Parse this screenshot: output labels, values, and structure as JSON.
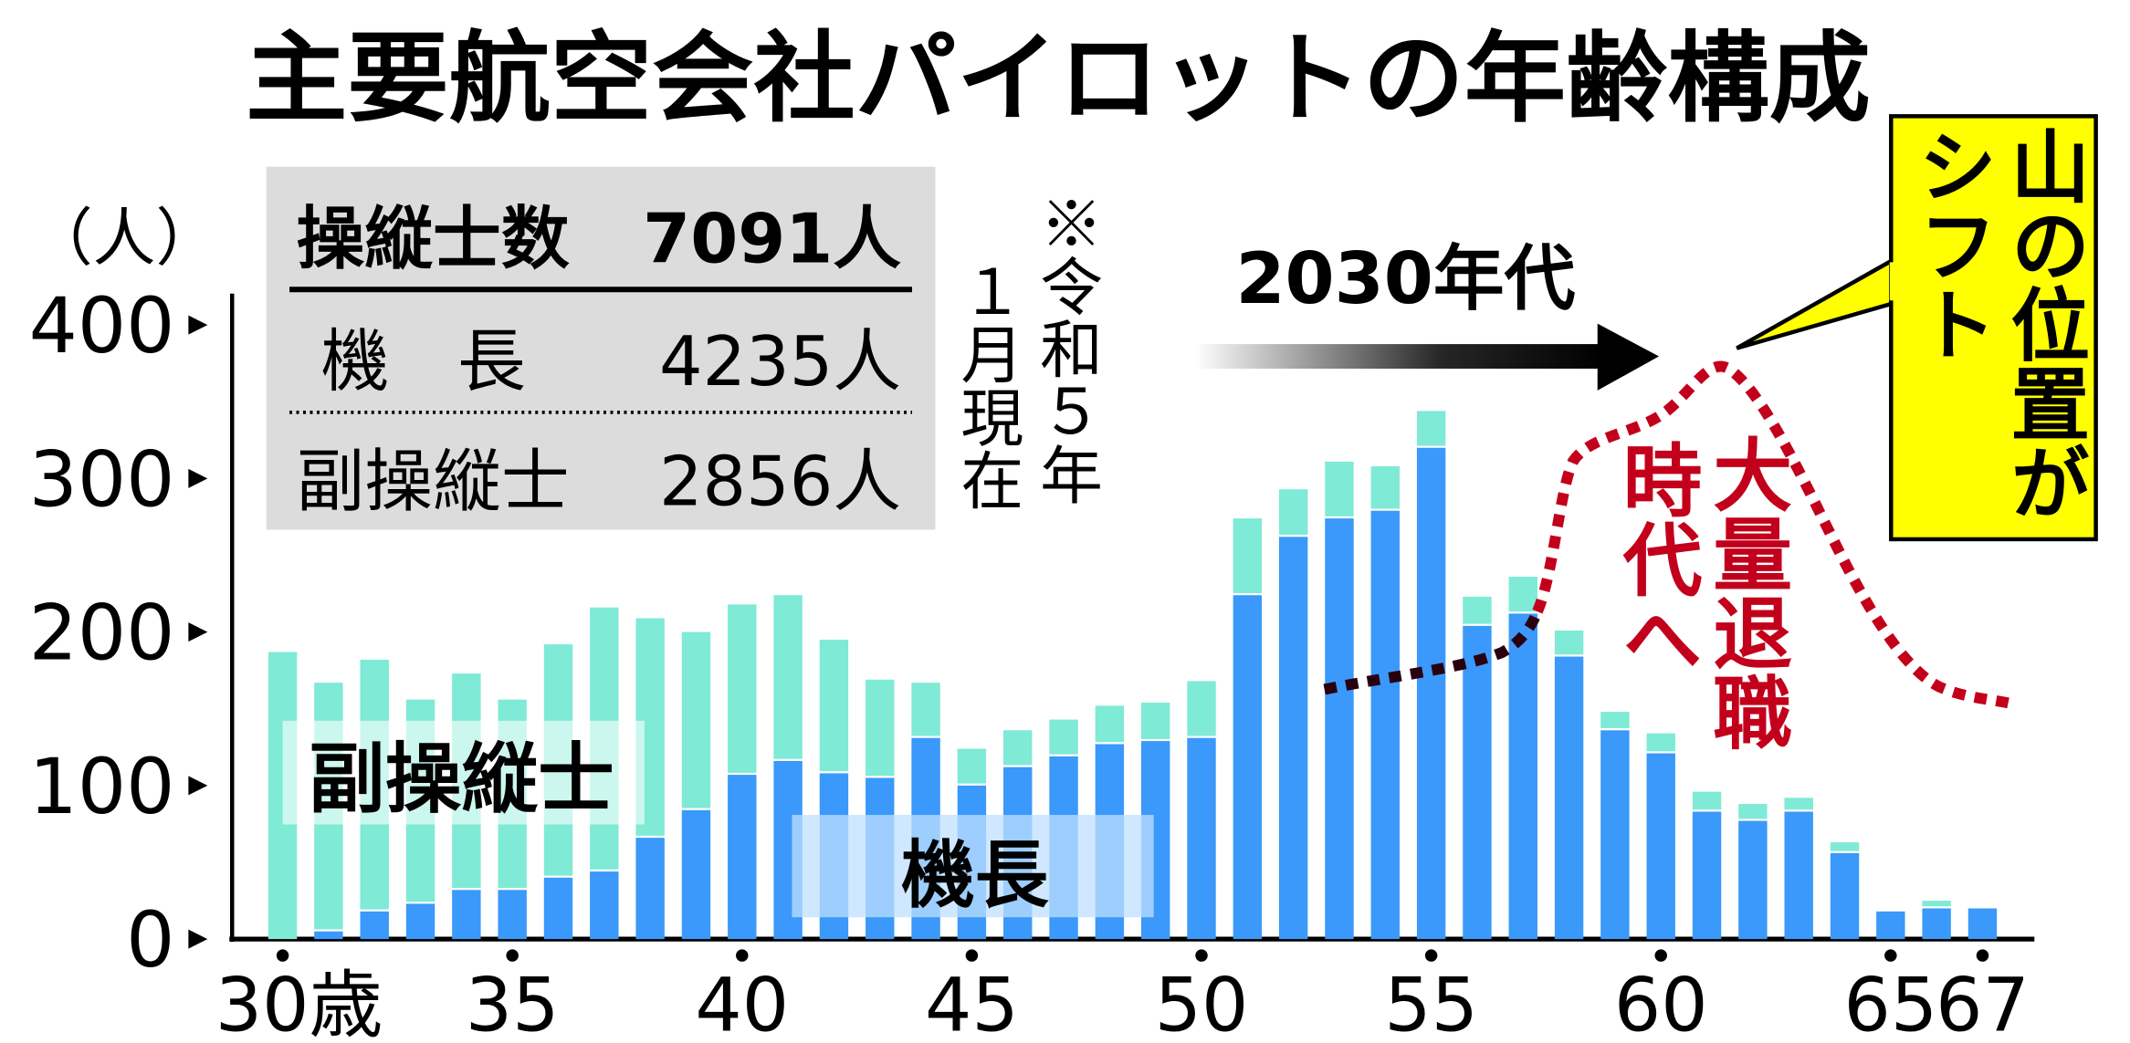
{
  "chart_data": {
    "type": "bar",
    "stacked": true,
    "title": "主要航空会社パイロットの年齢構成",
    "ylabel": "（人）",
    "ylim": [
      0,
      400
    ],
    "yticks": [
      "0",
      "100",
      "200",
      "300",
      "400"
    ],
    "x": [
      30,
      31,
      32,
      33,
      34,
      35,
      36,
      37,
      38,
      39,
      40,
      41,
      42,
      43,
      44,
      45,
      46,
      47,
      48,
      49,
      50,
      51,
      52,
      53,
      54,
      55,
      56,
      57,
      58,
      59,
      60,
      61,
      62,
      63,
      64,
      65,
      66,
      67
    ],
    "xtick_labels": [
      {
        "age": 30,
        "label": "30歳"
      },
      {
        "age": 35,
        "label": "35"
      },
      {
        "age": 40,
        "label": "40"
      },
      {
        "age": 45,
        "label": "45"
      },
      {
        "age": 50,
        "label": "50"
      },
      {
        "age": 55,
        "label": "55"
      },
      {
        "age": 60,
        "label": "60"
      },
      {
        "age": 65,
        "label": "65"
      },
      {
        "age": 67,
        "label": "67"
      }
    ],
    "series": [
      {
        "name": "機長",
        "color": "#3a99fa",
        "values": [
          0,
          5,
          18,
          23,
          32,
          32,
          40,
          44,
          66,
          84,
          107,
          116,
          108,
          105,
          131,
          100,
          112,
          119,
          127,
          129,
          131,
          224,
          262,
          274,
          279,
          320,
          204,
          212,
          184,
          136,
          121,
          83,
          77,
          83,
          56,
          18,
          20,
          20
        ]
      },
      {
        "name": "副操縦士",
        "color": "#7fead5",
        "values": [
          187,
          162,
          164,
          133,
          141,
          124,
          152,
          172,
          143,
          116,
          111,
          108,
          87,
          64,
          36,
          24,
          24,
          24,
          25,
          25,
          37,
          50,
          31,
          37,
          29,
          24,
          19,
          24,
          17,
          12,
          13,
          13,
          11,
          9,
          7,
          0,
          5,
          0
        ]
      }
    ],
    "legend_labels": {
      "first_officer": "副操縦士",
      "captain": "機長"
    },
    "summary_box": {
      "total_label": "操縦士数",
      "total_value": "7091人",
      "captain_label": "機　長",
      "captain_value": "4235人",
      "fo_label": "副操縦士",
      "fo_value": "2856人"
    },
    "note_columns": [
      "※令和５年",
      "１月現在"
    ],
    "arrow_label": "2030年代",
    "retirement_columns": [
      "大量退職",
      "時代へ"
    ],
    "callout_columns": [
      "山の位置が",
      "シフト"
    ],
    "colors": {
      "captain": "#3a99fa",
      "first_officer": "#7fead5",
      "curve": "#c3001b",
      "callout": "#ffff00",
      "summary_box": "#dcdcdc"
    }
  }
}
